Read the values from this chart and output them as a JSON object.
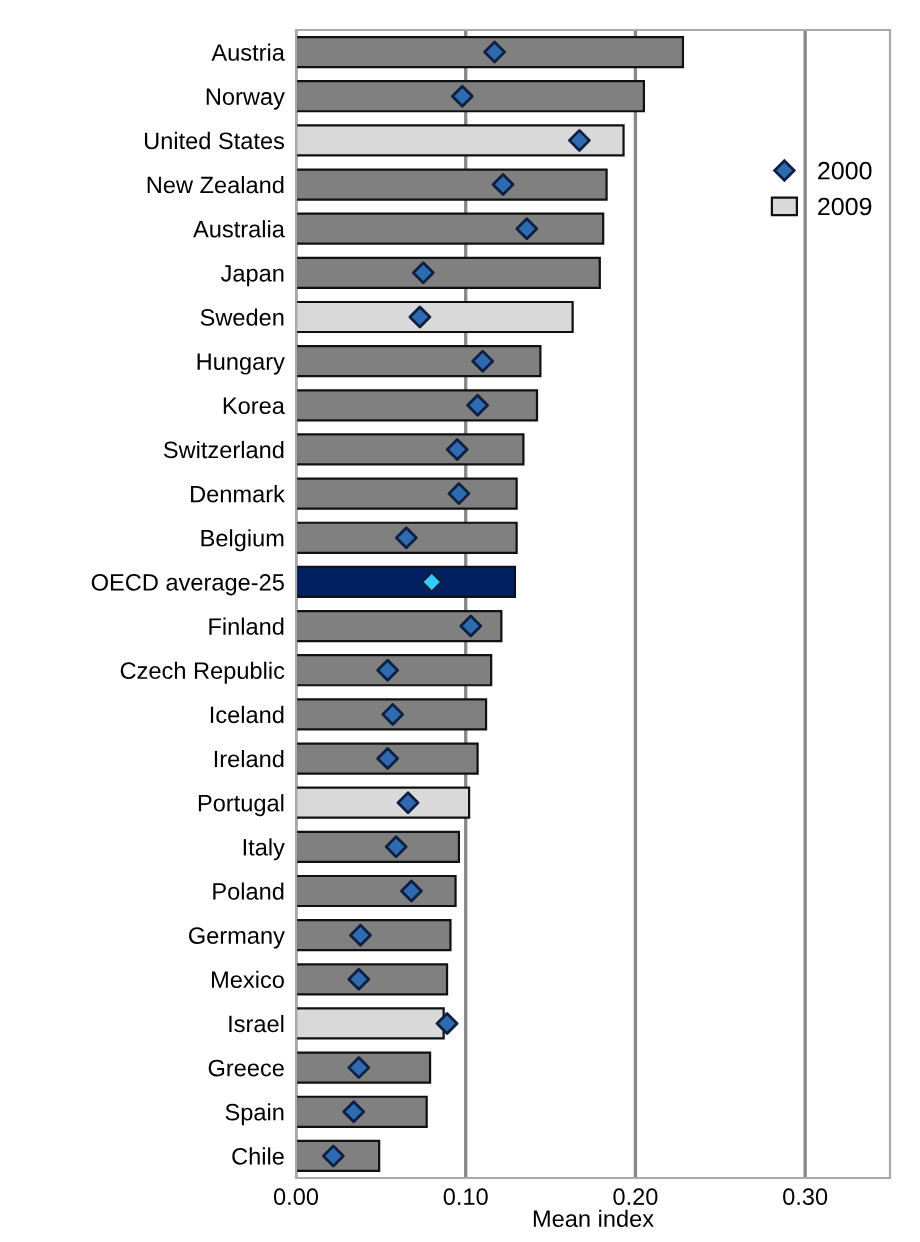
{
  "chart_data": {
    "type": "bar",
    "orientation": "horizontal",
    "xlabel": "Mean index",
    "categories": [
      "Austria",
      "Norway",
      "United States",
      "New Zealand",
      "Australia",
      "Japan",
      "Sweden",
      "Hungary",
      "Korea",
      "Switzerland",
      "Denmark",
      "Belgium",
      "OECD average-25",
      "Finland",
      "Czech Republic",
      "Iceland",
      "Ireland",
      "Portugal",
      "Italy",
      "Poland",
      "Germany",
      "Mexico",
      "Israel",
      "Greece",
      "Spain",
      "Chile"
    ],
    "series": [
      {
        "name": "2009",
        "color": "#d9d9d9",
        "colors": [
          "#808080",
          "#808080",
          "#d9d9d9",
          "#808080",
          "#808080",
          "#808080",
          "#d9d9d9",
          "#808080",
          "#808080",
          "#808080",
          "#808080",
          "#808080",
          "#002060",
          "#808080",
          "#808080",
          "#808080",
          "#808080",
          "#d9d9d9",
          "#808080",
          "#808080",
          "#808080",
          "#808080",
          "#d9d9d9",
          "#808080",
          "#808080",
          "#808080"
        ],
        "values": [
          0.228,
          0.205,
          0.193,
          0.183,
          0.181,
          0.179,
          0.163,
          0.144,
          0.142,
          0.134,
          0.13,
          0.13,
          0.129,
          0.121,
          0.115,
          0.112,
          0.107,
          0.102,
          0.096,
          0.094,
          0.091,
          0.089,
          0.087,
          0.079,
          0.077,
          0.049
        ]
      },
      {
        "name": "2000",
        "type": "scatter",
        "marker": "diamond",
        "color": "#2e6bb0",
        "colors": [
          "#2e6bb0",
          "#2e6bb0",
          "#2e6bb0",
          "#2e6bb0",
          "#2e6bb0",
          "#2e6bb0",
          "#2e6bb0",
          "#2e6bb0",
          "#2e6bb0",
          "#2e6bb0",
          "#2e6bb0",
          "#2e6bb0",
          "#33ccff",
          "#2e6bb0",
          "#2e6bb0",
          "#2e6bb0",
          "#2e6bb0",
          "#2e6bb0",
          "#2e6bb0",
          "#2e6bb0",
          "#2e6bb0",
          "#2e6bb0",
          "#2e6bb0",
          "#2e6bb0",
          "#2e6bb0",
          "#2e6bb0"
        ],
        "values": [
          0.117,
          0.098,
          0.167,
          0.122,
          0.136,
          0.075,
          0.073,
          0.11,
          0.107,
          0.095,
          0.096,
          0.065,
          0.08,
          0.103,
          0.054,
          0.057,
          0.054,
          0.066,
          0.059,
          0.068,
          0.038,
          0.037,
          0.089,
          0.037,
          0.034,
          0.022
        ]
      }
    ],
    "xlim": [
      0,
      0.35
    ],
    "xticks": [
      {
        "value": 0,
        "label": "0.00"
      },
      {
        "value": 0.1,
        "label": "0.10"
      },
      {
        "value": 0.2,
        "label": "0.20"
      },
      {
        "value": 0.3,
        "label": "0.30"
      }
    ],
    "grid": "x",
    "legend": "right"
  }
}
